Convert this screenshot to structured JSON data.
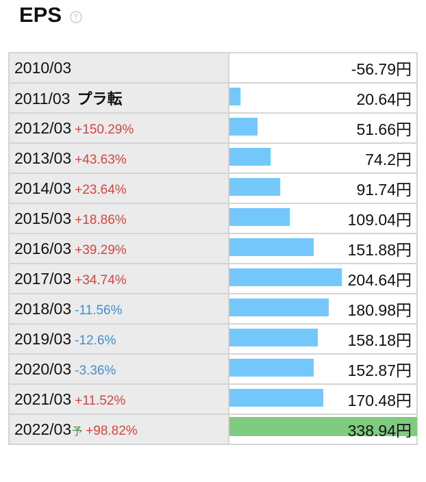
{
  "header": {
    "title": "EPS",
    "help_icon": "question-circle-icon"
  },
  "colors": {
    "bar": "#73c7fa",
    "forecast_bar": "#7fcb80",
    "increase": "#d6443f",
    "decrease": "#3c8fd8"
  },
  "rows": [
    {
      "year": "2010/03",
      "change": "",
      "note": "",
      "forecast_mark": "",
      "value": "-56.79円",
      "bar_level": 0
    },
    {
      "year": "2011/03",
      "change": "",
      "note": "プラ転",
      "forecast_mark": "",
      "value": "20.64円",
      "bar_level": 0.06
    },
    {
      "year": "2012/03",
      "change": "+150.29%",
      "note": "",
      "forecast_mark": "",
      "value": "51.66円",
      "bar_level": 0.15
    },
    {
      "year": "2013/03",
      "change": "+43.63%",
      "note": "",
      "forecast_mark": "",
      "value": "74.2円",
      "bar_level": 0.22
    },
    {
      "year": "2014/03",
      "change": "+23.64%",
      "note": "",
      "forecast_mark": "",
      "value": "91.74円",
      "bar_level": 0.27
    },
    {
      "year": "2015/03",
      "change": "+18.86%",
      "note": "",
      "forecast_mark": "",
      "value": "109.04円",
      "bar_level": 0.32
    },
    {
      "year": "2016/03",
      "change": "+39.29%",
      "note": "",
      "forecast_mark": "",
      "value": "151.88円",
      "bar_level": 0.45
    },
    {
      "year": "2017/03",
      "change": "+34.74%",
      "note": "",
      "forecast_mark": "",
      "value": "204.64円",
      "bar_level": 0.6
    },
    {
      "year": "2018/03",
      "change": "-11.56%",
      "note": "",
      "forecast_mark": "",
      "value": "180.98円",
      "bar_level": 0.53
    },
    {
      "year": "2019/03",
      "change": "-12.6%",
      "note": "",
      "forecast_mark": "",
      "value": "158.18円",
      "bar_level": 0.47
    },
    {
      "year": "2020/03",
      "change": "-3.36%",
      "note": "",
      "forecast_mark": "",
      "value": "152.87円",
      "bar_level": 0.45
    },
    {
      "year": "2021/03",
      "change": "+11.52%",
      "note": "",
      "forecast_mark": "",
      "value": "170.48円",
      "bar_level": 0.5
    },
    {
      "year": "2022/03",
      "change": "+98.82%",
      "note": "",
      "forecast_mark": "予",
      "value": "338.94円",
      "bar_level": 1.0
    }
  ]
}
